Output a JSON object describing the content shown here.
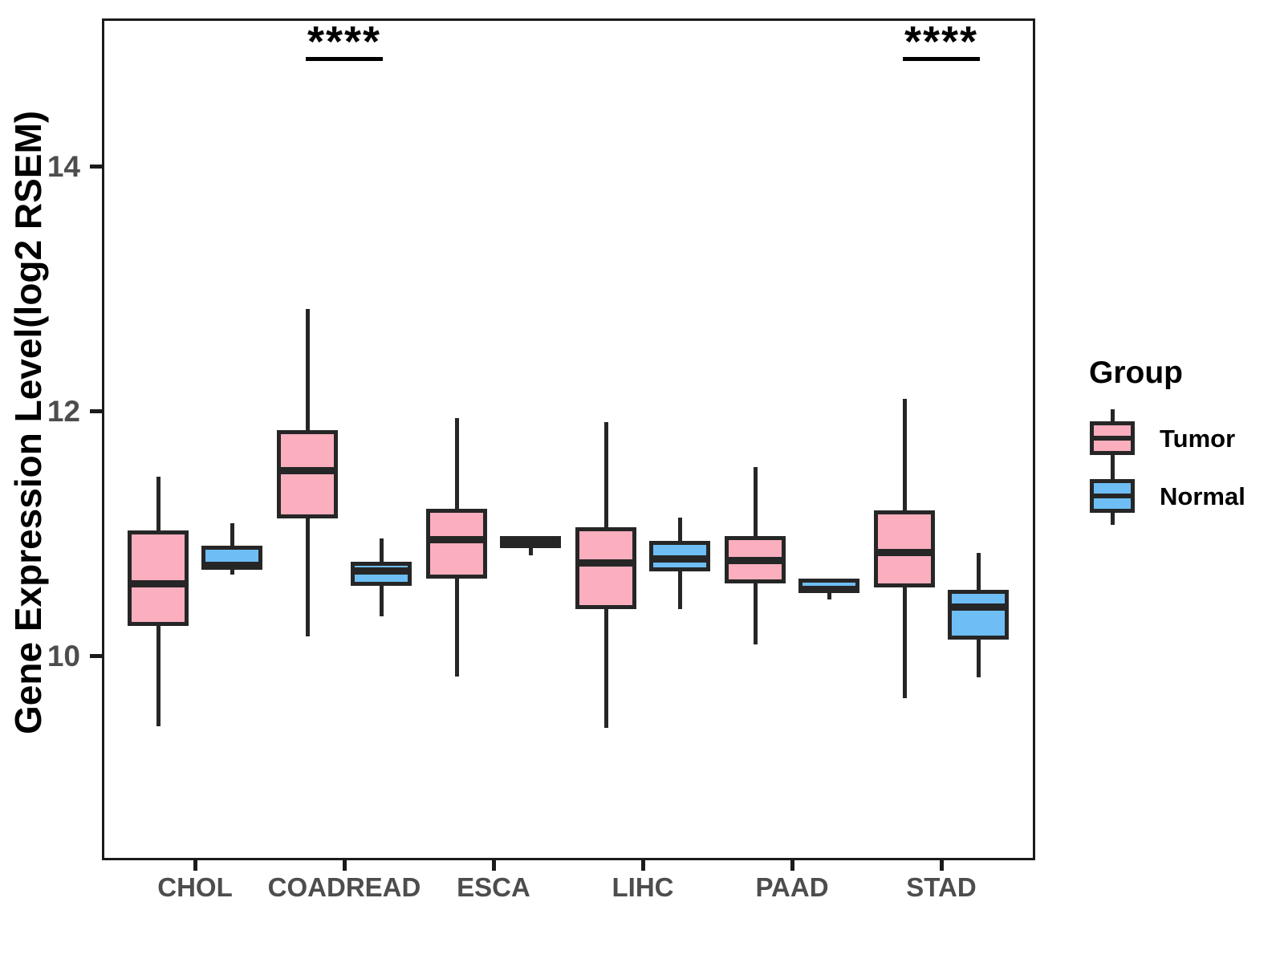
{
  "colors": {
    "tumor_fill": "#FAAEBE",
    "normal_fill": "#6EBEF5",
    "stroke": "#262626",
    "panel_border": "#1b1b1b",
    "axis_text": "#4d4d4d",
    "title_text": "#000000"
  },
  "chart_data": {
    "type": "boxplot",
    "title": "",
    "xlabel": "",
    "ylabel": "Gene Expression Level(log2 RSEM)",
    "categories": [
      "CHOL",
      "COADREAD",
      "ESCA",
      "LIHC",
      "PAAD",
      "STAD"
    ],
    "y_ticks": [
      10,
      12,
      14
    ],
    "ylim": [
      8.33,
      15.21
    ],
    "grid": false,
    "legend": {
      "title": "Group",
      "position": "right",
      "entries": [
        {
          "label": "Tumor",
          "color": "#FAAEBE"
        },
        {
          "label": "Normal",
          "color": "#6EBEF5"
        }
      ]
    },
    "significance": [
      {
        "category": "COADREAD",
        "label": "****"
      },
      {
        "category": "STAD",
        "label": "****"
      }
    ],
    "series": [
      {
        "name": "Tumor",
        "color": "#FAAEBE",
        "boxes": [
          {
            "category": "CHOL",
            "whisker_low": 9.42,
            "q1": 10.24,
            "median": 10.59,
            "q3": 11.02,
            "whisker_high": 11.46
          },
          {
            "category": "COADREAD",
            "whisker_low": 10.16,
            "q1": 11.12,
            "median": 11.51,
            "q3": 11.84,
            "whisker_high": 12.83
          },
          {
            "category": "ESCA",
            "whisker_low": 9.83,
            "q1": 10.63,
            "median": 10.95,
            "q3": 11.2,
            "whisker_high": 11.94
          },
          {
            "category": "LIHC",
            "whisker_low": 9.41,
            "q1": 10.38,
            "median": 10.76,
            "q3": 11.05,
            "whisker_high": 11.91
          },
          {
            "category": "PAAD",
            "whisker_low": 10.09,
            "q1": 10.59,
            "median": 10.78,
            "q3": 10.98,
            "whisker_high": 11.54
          },
          {
            "category": "STAD",
            "whisker_low": 9.65,
            "q1": 10.56,
            "median": 10.84,
            "q3": 11.19,
            "whisker_high": 12.1
          }
        ]
      },
      {
        "name": "Normal",
        "color": "#6EBEF5",
        "boxes": [
          {
            "category": "CHOL",
            "whisker_low": 10.66,
            "q1": 10.7,
            "median": 10.74,
            "q3": 10.9,
            "whisker_high": 11.08
          },
          {
            "category": "COADREAD",
            "whisker_low": 10.32,
            "q1": 10.57,
            "median": 10.69,
            "q3": 10.77,
            "whisker_high": 10.96
          },
          {
            "category": "ESCA",
            "whisker_low": 10.82,
            "q1": 10.88,
            "median": 10.93,
            "q3": 10.98,
            "whisker_high": 10.98
          },
          {
            "category": "LIHC",
            "whisker_low": 10.38,
            "q1": 10.69,
            "median": 10.79,
            "q3": 10.94,
            "whisker_high": 11.13
          },
          {
            "category": "PAAD",
            "whisker_low": 10.46,
            "q1": 10.51,
            "median": 10.54,
            "q3": 10.63,
            "whisker_high": 10.63
          },
          {
            "category": "STAD",
            "whisker_low": 9.82,
            "q1": 10.13,
            "median": 10.4,
            "q3": 10.54,
            "whisker_high": 10.84
          }
        ]
      }
    ]
  }
}
